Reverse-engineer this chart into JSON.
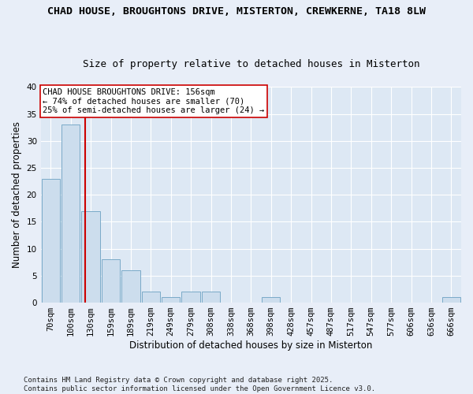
{
  "title_line1": "CHAD HOUSE, BROUGHTONS DRIVE, MISTERTON, CREWKERNE, TA18 8LW",
  "title_line2": "Size of property relative to detached houses in Misterton",
  "xlabel": "Distribution of detached houses by size in Misterton",
  "ylabel": "Number of detached properties",
  "categories": [
    "70sqm",
    "100sqm",
    "130sqm",
    "159sqm",
    "189sqm",
    "219sqm",
    "249sqm",
    "279sqm",
    "308sqm",
    "338sqm",
    "368sqm",
    "398sqm",
    "428sqm",
    "457sqm",
    "487sqm",
    "517sqm",
    "547sqm",
    "577sqm",
    "606sqm",
    "636sqm",
    "666sqm"
  ],
  "values": [
    23,
    33,
    17,
    8,
    6,
    2,
    1,
    2,
    2,
    0,
    0,
    1,
    0,
    0,
    0,
    0,
    0,
    0,
    0,
    0,
    1
  ],
  "bar_color": "#ccdded",
  "bar_edge_color": "#7aaac8",
  "vline_color": "#cc0000",
  "vline_index": 1.72,
  "ylim": [
    0,
    40
  ],
  "yticks": [
    0,
    5,
    10,
    15,
    20,
    25,
    30,
    35,
    40
  ],
  "annotation_text": "CHAD HOUSE BROUGHTONS DRIVE: 156sqm\n← 74% of detached houses are smaller (70)\n25% of semi-detached houses are larger (24) →",
  "annotation_box_facecolor": "#ffffff",
  "annotation_box_edgecolor": "#cc0000",
  "footnote": "Contains HM Land Registry data © Crown copyright and database right 2025.\nContains public sector information licensed under the Open Government Licence v3.0.",
  "fig_bg_color": "#e8eef8",
  "plot_bg_color": "#dde8f4",
  "grid_color": "#ffffff",
  "title1_fontsize": 9.5,
  "title2_fontsize": 9,
  "axis_label_fontsize": 8.5,
  "tick_fontsize": 7.5,
  "annotation_fontsize": 7.5,
  "footnote_fontsize": 6.5
}
